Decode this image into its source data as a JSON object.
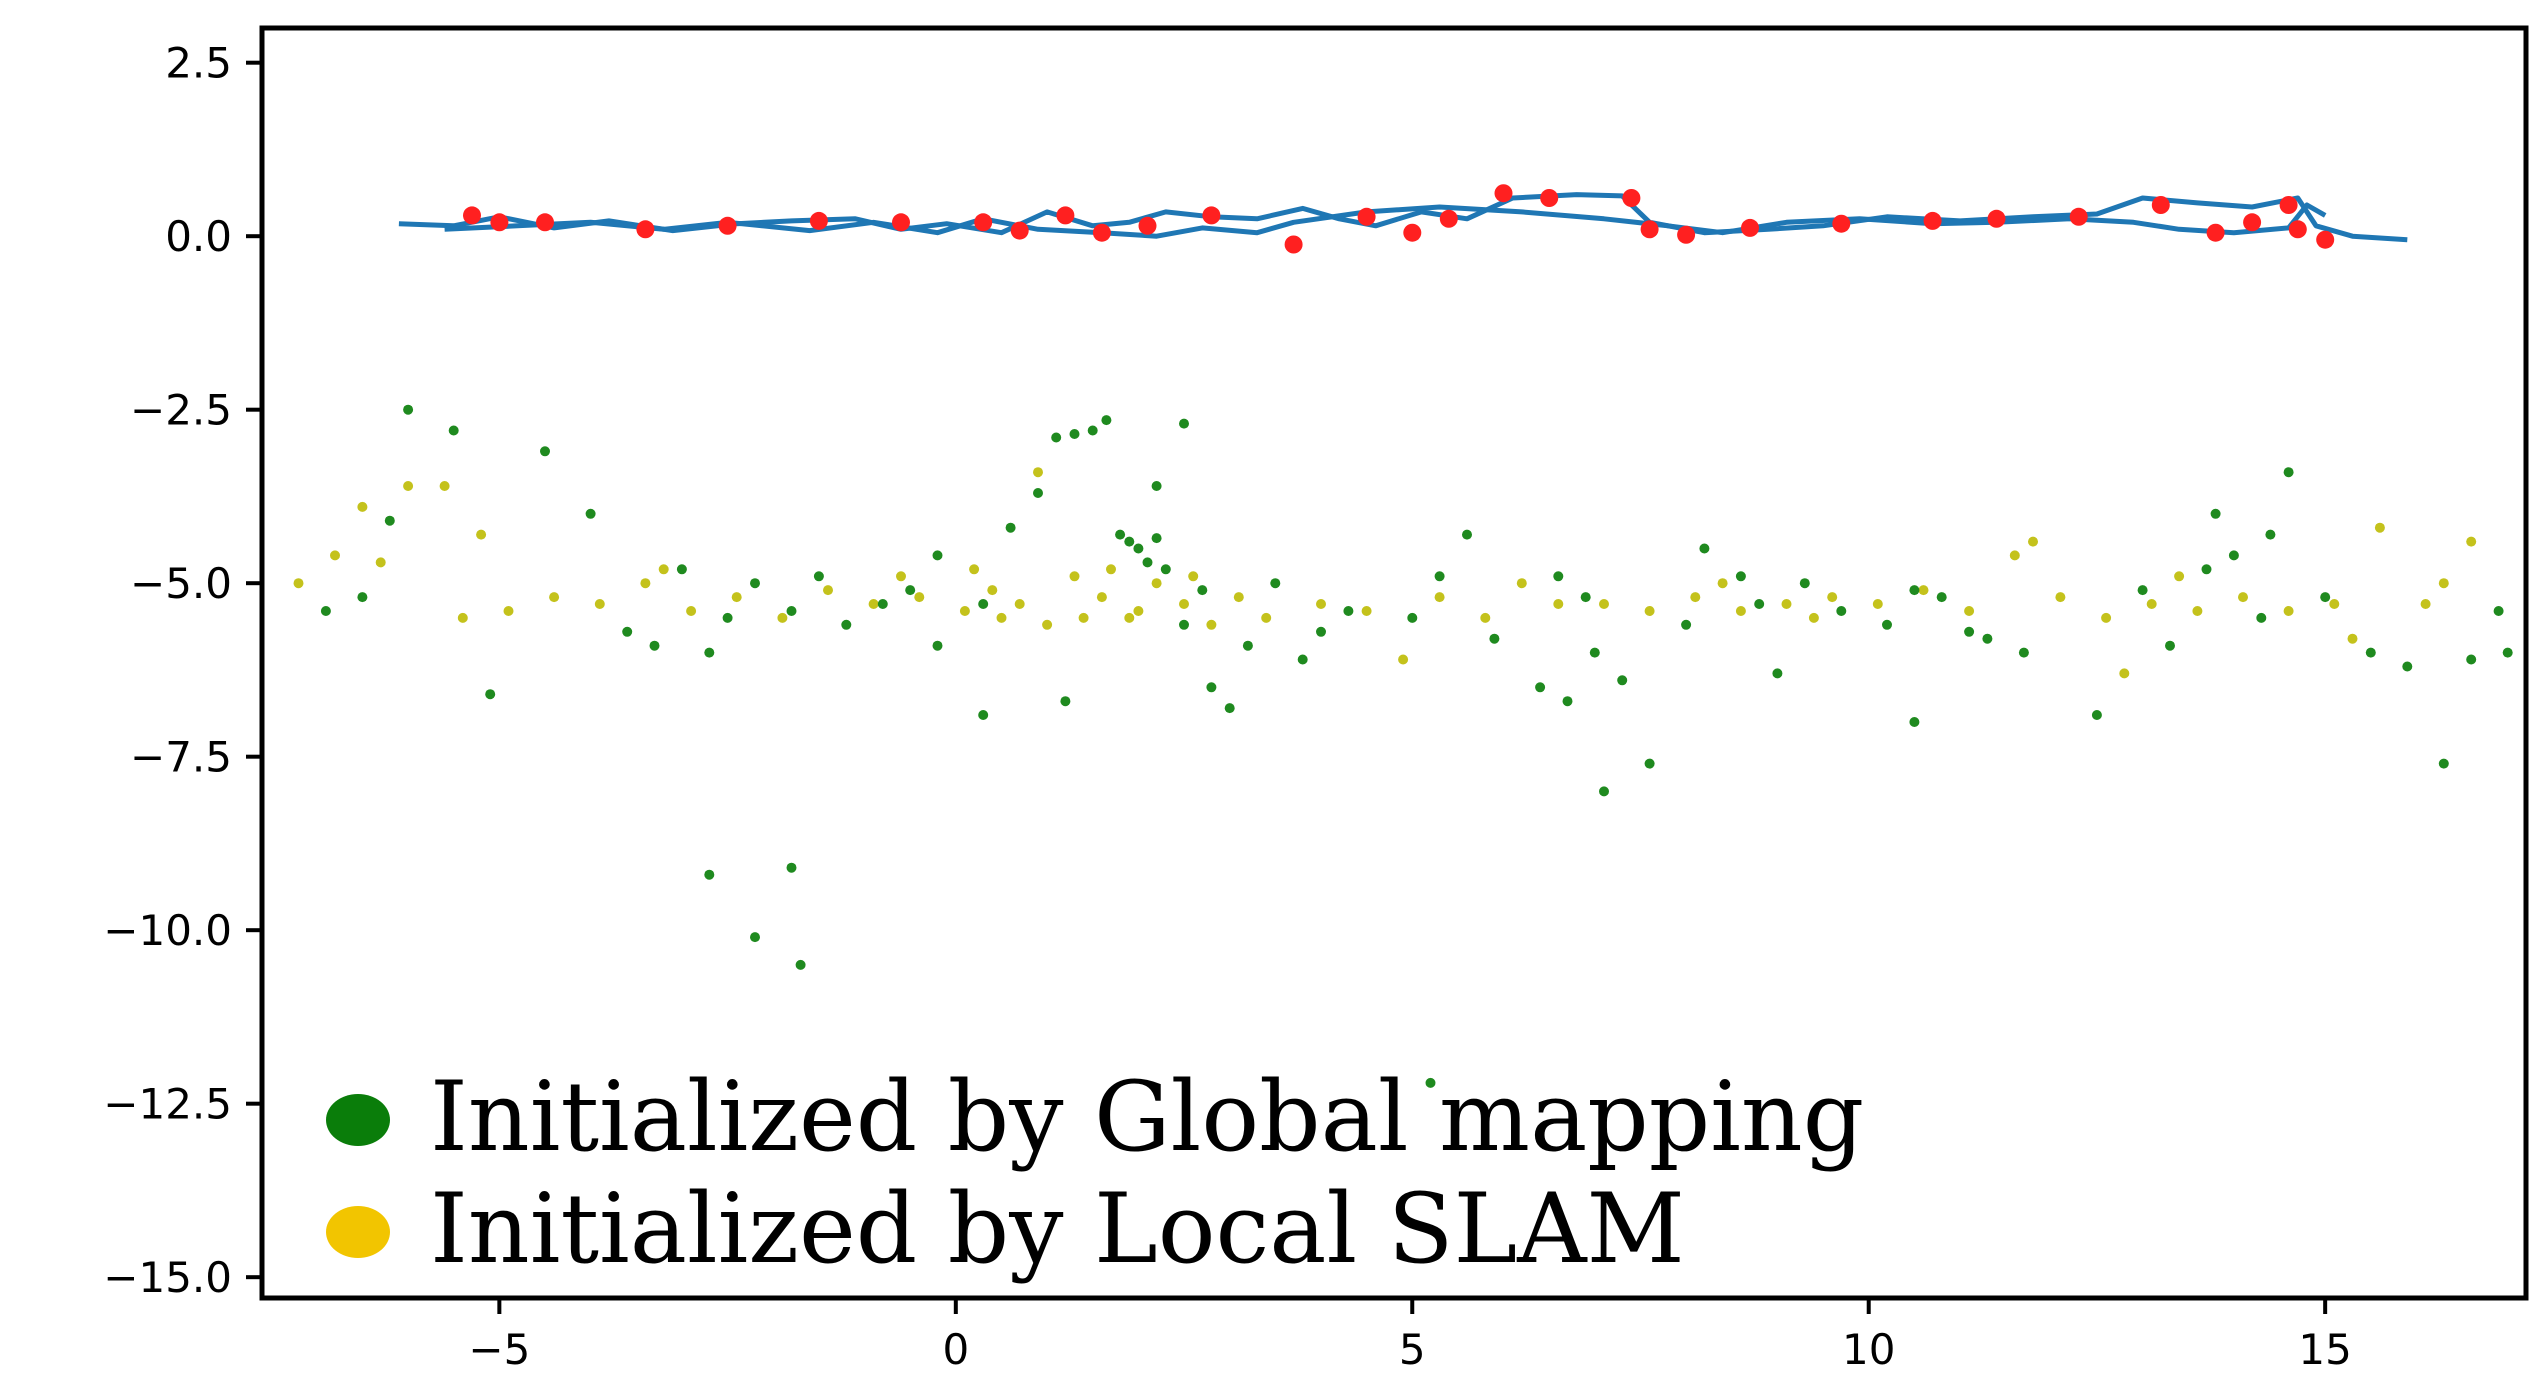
{
  "chart_data": {
    "type": "scatter",
    "xlim": [
      -7.6,
      17.2
    ],
    "ylim": [
      -15.3,
      3.0
    ],
    "x_ticks": [
      -5,
      0,
      5,
      10,
      15
    ],
    "x_tick_labels": [
      "−5",
      "0",
      "5",
      "10",
      "15"
    ],
    "y_ticks": [
      2.5,
      0.0,
      -2.5,
      -5.0,
      -7.5,
      -10.0,
      -12.5,
      -15.0
    ],
    "y_tick_labels": [
      "2.5",
      "0.0",
      "−2.5",
      "−5.0",
      "−7.5",
      "−10.0",
      "−12.5",
      "−15.0"
    ],
    "grid": false,
    "legend_position": "lower-left",
    "series": [
      {
        "name": "Initialized by Global mapping",
        "kind": "scatter",
        "color": "#1f8a1f",
        "legend_color": "#0a7d0a",
        "points": [
          [
            -6,
            -2.5
          ],
          [
            -5.5,
            -2.8
          ],
          [
            -4.5,
            -3.1
          ],
          [
            -4,
            -4.0
          ],
          [
            -3.6,
            -5.7
          ],
          [
            -3.3,
            -5.9
          ],
          [
            -2.5,
            -5.5
          ],
          [
            -2.2,
            -5.0
          ],
          [
            -1.8,
            -5.4
          ],
          [
            -1.5,
            -4.9
          ],
          [
            -1.2,
            -5.6
          ],
          [
            -0.8,
            -5.3
          ],
          [
            -0.5,
            -5.1
          ],
          [
            -0.2,
            -4.6
          ],
          [
            0.3,
            -5.3
          ],
          [
            0.6,
            -4.2
          ],
          [
            0.9,
            -3.7
          ],
          [
            1.1,
            -2.9
          ],
          [
            1.3,
            -2.85
          ],
          [
            1.5,
            -2.8
          ],
          [
            1.65,
            -2.65
          ],
          [
            1.8,
            -4.3
          ],
          [
            1.9,
            -4.4
          ],
          [
            2.0,
            -4.5
          ],
          [
            2.1,
            -4.7
          ],
          [
            2.2,
            -4.35
          ],
          [
            2.3,
            -4.8
          ],
          [
            2.5,
            -5.6
          ],
          [
            2.7,
            -5.1
          ],
          [
            2.8,
            -6.5
          ],
          [
            3.0,
            -6.8
          ],
          [
            3.2,
            -5.9
          ],
          [
            3.5,
            -5.0
          ],
          [
            2.5,
            -2.7
          ],
          [
            2.2,
            -3.6
          ],
          [
            -6.2,
            -4.1
          ],
          [
            -6.5,
            -5.2
          ],
          [
            -6.9,
            -5.4
          ],
          [
            -5.1,
            -6.6
          ],
          [
            -3.0,
            -4.8
          ],
          [
            -2.7,
            -6.0
          ],
          [
            5.0,
            -5.5
          ],
          [
            5.3,
            -4.9
          ],
          [
            5.6,
            -4.3
          ],
          [
            5.9,
            -5.8
          ],
          [
            6.4,
            -6.5
          ],
          [
            6.7,
            -6.7
          ],
          [
            7.0,
            -6.0
          ],
          [
            7.1,
            -8.0
          ],
          [
            7.6,
            -7.6
          ],
          [
            7.3,
            -6.4
          ],
          [
            6.9,
            -5.2
          ],
          [
            6.6,
            -4.9
          ],
          [
            8.2,
            -4.5
          ],
          [
            8.6,
            -4.9
          ],
          [
            8.0,
            -5.6
          ],
          [
            8.8,
            -5.3
          ],
          [
            9.3,
            -5.0
          ],
          [
            9.7,
            -5.4
          ],
          [
            10.2,
            -5.6
          ],
          [
            10.5,
            -5.1
          ],
          [
            10.8,
            -5.2
          ],
          [
            11.1,
            -5.7
          ],
          [
            11.3,
            -5.8
          ],
          [
            11.7,
            -6.0
          ],
          [
            12.5,
            -6.9
          ],
          [
            13.0,
            -5.1
          ],
          [
            13.3,
            -5.9
          ],
          [
            13.7,
            -4.8
          ],
          [
            14.0,
            -4.6
          ],
          [
            14.3,
            -5.5
          ],
          [
            14.6,
            -3.4
          ],
          [
            15.0,
            -5.2
          ],
          [
            15.5,
            -6.0
          ],
          [
            15.9,
            -6.2
          ],
          [
            16.3,
            -7.6
          ],
          [
            16.6,
            -6.1
          ],
          [
            16.9,
            -5.4
          ],
          [
            17.0,
            -6.0
          ],
          [
            13.8,
            -4.0
          ],
          [
            14.4,
            -4.3
          ],
          [
            -2.7,
            -9.2
          ],
          [
            -2.2,
            -10.1
          ],
          [
            -1.8,
            -9.1
          ],
          [
            -1.7,
            -10.5
          ],
          [
            5.2,
            -12.2
          ],
          [
            1.2,
            -6.7
          ],
          [
            0.3,
            -6.9
          ],
          [
            -0.2,
            -5.9
          ],
          [
            4.0,
            -5.7
          ],
          [
            4.3,
            -5.4
          ],
          [
            3.8,
            -6.1
          ],
          [
            10.5,
            -7.0
          ],
          [
            9.0,
            -6.3
          ]
        ]
      },
      {
        "name": "Initialized by Local SLAM",
        "kind": "scatter",
        "color": "#c4c21c",
        "legend_color": "#f2c500",
        "points": [
          [
            -7.2,
            -5.0
          ],
          [
            -6.8,
            -4.6
          ],
          [
            -6.5,
            -3.9
          ],
          [
            -6.0,
            -3.6
          ],
          [
            -5.6,
            -3.6
          ],
          [
            -5.2,
            -4.3
          ],
          [
            -4.9,
            -5.4
          ],
          [
            -4.4,
            -5.2
          ],
          [
            -3.9,
            -5.3
          ],
          [
            -3.4,
            -5.0
          ],
          [
            -2.9,
            -5.4
          ],
          [
            -2.4,
            -5.2
          ],
          [
            -1.9,
            -5.5
          ],
          [
            -1.4,
            -5.1
          ],
          [
            -0.9,
            -5.3
          ],
          [
            -0.4,
            -5.2
          ],
          [
            0.1,
            -5.4
          ],
          [
            0.4,
            -5.1
          ],
          [
            0.7,
            -5.3
          ],
          [
            1.0,
            -5.6
          ],
          [
            1.3,
            -4.9
          ],
          [
            1.6,
            -5.2
          ],
          [
            1.9,
            -5.5
          ],
          [
            2.2,
            -5.0
          ],
          [
            2.5,
            -5.3
          ],
          [
            2.8,
            -5.6
          ],
          [
            3.1,
            -5.2
          ],
          [
            3.4,
            -5.5
          ],
          [
            0.2,
            -4.8
          ],
          [
            0.5,
            -5.5
          ],
          [
            1.4,
            -5.5
          ],
          [
            1.7,
            -4.8
          ],
          [
            2.0,
            -5.4
          ],
          [
            2.6,
            -4.9
          ],
          [
            0.9,
            -3.4
          ],
          [
            4.0,
            -5.3
          ],
          [
            4.5,
            -5.4
          ],
          [
            4.9,
            -6.1
          ],
          [
            5.3,
            -5.2
          ],
          [
            5.8,
            -5.5
          ],
          [
            6.2,
            -5.0
          ],
          [
            6.6,
            -5.3
          ],
          [
            7.1,
            -5.3
          ],
          [
            7.6,
            -5.4
          ],
          [
            8.1,
            -5.2
          ],
          [
            8.6,
            -5.4
          ],
          [
            9.1,
            -5.3
          ],
          [
            9.6,
            -5.2
          ],
          [
            10.1,
            -5.3
          ],
          [
            10.6,
            -5.1
          ],
          [
            11.1,
            -5.4
          ],
          [
            11.6,
            -4.6
          ],
          [
            12.1,
            -5.2
          ],
          [
            12.6,
            -5.5
          ],
          [
            13.1,
            -5.3
          ],
          [
            13.6,
            -5.4
          ],
          [
            14.1,
            -5.2
          ],
          [
            14.6,
            -5.4
          ],
          [
            15.1,
            -5.3
          ],
          [
            15.6,
            -4.2
          ],
          [
            16.1,
            -5.3
          ],
          [
            16.6,
            -4.4
          ],
          [
            12.8,
            -6.3
          ],
          [
            11.8,
            -4.4
          ],
          [
            -5.4,
            -5.5
          ],
          [
            -6.3,
            -4.7
          ],
          [
            -3.2,
            -4.8
          ],
          [
            -0.6,
            -4.9
          ],
          [
            8.4,
            -5.0
          ],
          [
            9.4,
            -5.5
          ],
          [
            13.4,
            -4.9
          ],
          [
            15.3,
            -5.8
          ],
          [
            16.3,
            -5.0
          ]
        ]
      },
      {
        "kind": "line",
        "color": "#1f77b4",
        "points": [
          [
            -6.1,
            0.18
          ],
          [
            -5.5,
            0.15
          ],
          [
            -5.0,
            0.28
          ],
          [
            -4.4,
            0.12
          ],
          [
            -3.8,
            0.22
          ],
          [
            -3.1,
            0.08
          ],
          [
            -2.4,
            0.18
          ],
          [
            -1.8,
            0.22
          ],
          [
            -1.1,
            0.25
          ],
          [
            -0.6,
            0.1
          ],
          [
            -0.1,
            0.18
          ],
          [
            0.5,
            0.05
          ],
          [
            1.0,
            0.35
          ],
          [
            1.5,
            0.15
          ],
          [
            1.9,
            0.2
          ],
          [
            2.3,
            0.35
          ],
          [
            2.8,
            0.28
          ],
          [
            3.3,
            0.25
          ],
          [
            3.8,
            0.4
          ],
          [
            4.2,
            0.25
          ],
          [
            4.6,
            0.15
          ],
          [
            5.1,
            0.35
          ],
          [
            5.6,
            0.25
          ],
          [
            6.1,
            0.55
          ],
          [
            6.8,
            0.6
          ],
          [
            7.3,
            0.58
          ],
          [
            7.6,
            0.2
          ],
          [
            8.2,
            0.05
          ],
          [
            8.9,
            0.1
          ],
          [
            9.5,
            0.15
          ],
          [
            10.2,
            0.28
          ],
          [
            11.0,
            0.22
          ],
          [
            11.8,
            0.28
          ],
          [
            12.5,
            0.32
          ],
          [
            13.0,
            0.55
          ],
          [
            13.6,
            0.48
          ],
          [
            14.2,
            0.42
          ],
          [
            14.7,
            0.55
          ],
          [
            14.9,
            0.15
          ],
          [
            15.3,
            0.0
          ],
          [
            15.9,
            -0.05
          ]
        ]
      },
      {
        "kind": "line",
        "color": "#1f77b4",
        "points": [
          [
            -5.6,
            0.1
          ],
          [
            -4.8,
            0.15
          ],
          [
            -4.0,
            0.2
          ],
          [
            -3.2,
            0.1
          ],
          [
            -2.5,
            0.2
          ],
          [
            -1.6,
            0.08
          ],
          [
            -0.9,
            0.2
          ],
          [
            -0.2,
            0.05
          ],
          [
            0.3,
            0.25
          ],
          [
            0.9,
            0.1
          ],
          [
            1.6,
            0.05
          ],
          [
            2.2,
            0.0
          ],
          [
            2.7,
            0.12
          ],
          [
            3.3,
            0.05
          ],
          [
            3.7,
            0.2
          ],
          [
            4.5,
            0.35
          ],
          [
            5.3,
            0.42
          ],
          [
            6.2,
            0.35
          ],
          [
            7.1,
            0.25
          ],
          [
            7.8,
            0.15
          ],
          [
            8.4,
            0.05
          ],
          [
            9.1,
            0.2
          ],
          [
            9.9,
            0.25
          ],
          [
            10.7,
            0.18
          ],
          [
            11.4,
            0.2
          ],
          [
            12.2,
            0.25
          ],
          [
            12.9,
            0.2
          ],
          [
            13.4,
            0.1
          ],
          [
            14.0,
            0.05
          ],
          [
            14.6,
            0.12
          ],
          [
            14.8,
            0.45
          ],
          [
            15.0,
            0.3
          ]
        ]
      },
      {
        "kind": "scatter",
        "color": "#ff2020",
        "points": [
          [
            -5.3,
            0.3
          ],
          [
            -5.0,
            0.2
          ],
          [
            -4.5,
            0.2
          ],
          [
            -3.4,
            0.1
          ],
          [
            -2.5,
            0.15
          ],
          [
            -1.5,
            0.22
          ],
          [
            -0.6,
            0.2
          ],
          [
            0.3,
            0.2
          ],
          [
            0.7,
            0.08
          ],
          [
            1.2,
            0.3
          ],
          [
            1.6,
            0.05
          ],
          [
            2.1,
            0.15
          ],
          [
            2.8,
            0.3
          ],
          [
            3.7,
            -0.12
          ],
          [
            4.5,
            0.28
          ],
          [
            5.0,
            0.05
          ],
          [
            5.4,
            0.25
          ],
          [
            6.0,
            0.62
          ],
          [
            6.5,
            0.55
          ],
          [
            7.4,
            0.55
          ],
          [
            7.6,
            0.1
          ],
          [
            8.0,
            0.02
          ],
          [
            8.7,
            0.12
          ],
          [
            9.7,
            0.18
          ],
          [
            10.7,
            0.22
          ],
          [
            11.4,
            0.25
          ],
          [
            12.3,
            0.28
          ],
          [
            13.2,
            0.45
          ],
          [
            13.8,
            0.05
          ],
          [
            14.2,
            0.2
          ],
          [
            14.6,
            0.45
          ],
          [
            14.7,
            0.1
          ],
          [
            15.0,
            -0.05
          ]
        ]
      }
    ]
  }
}
